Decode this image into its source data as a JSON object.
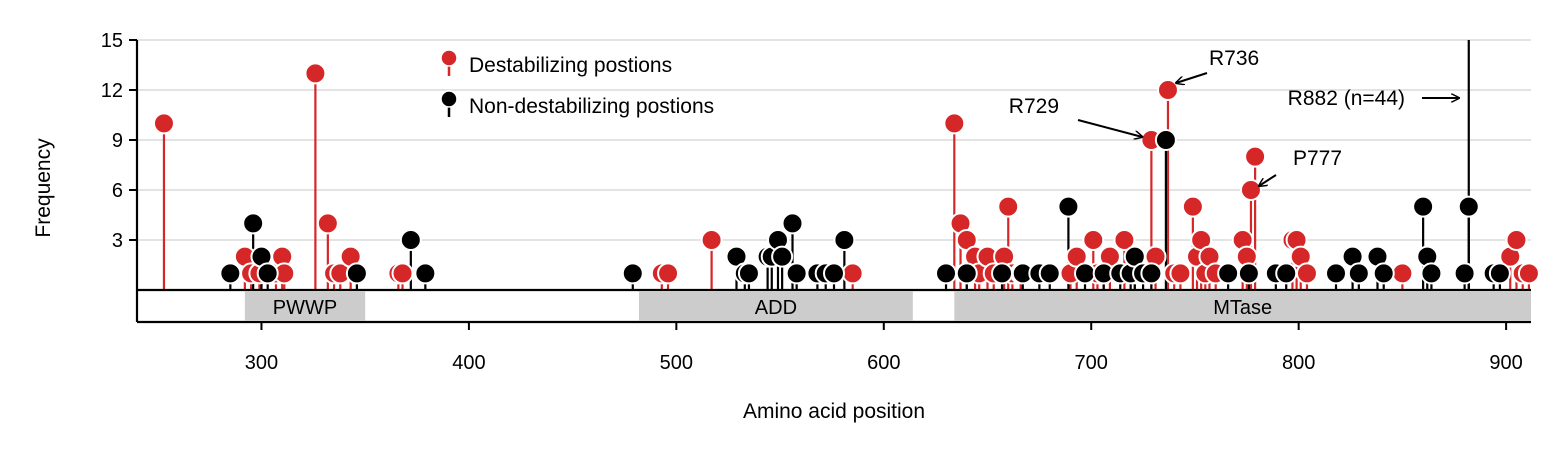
{
  "chart_data": {
    "type": "lollipop",
    "xlabel": "Amino acid position",
    "ylabel": "Frequency",
    "xlim": [
      240,
      912
    ],
    "ylim": [
      0,
      15
    ],
    "x_ticks": [
      300,
      400,
      500,
      600,
      700,
      800,
      900
    ],
    "y_ticks": [
      3,
      6,
      9,
      12,
      15
    ],
    "grid": "horizontal",
    "legend_position": "top-center",
    "colors": {
      "destabilizing": "#d62728",
      "non_destabilizing": "#000000",
      "domain": "#cccccc"
    },
    "series": [
      {
        "name": "Destabilizing postions",
        "key": "destabilizing",
        "points": [
          [
            253,
            10
          ],
          [
            292,
            2
          ],
          [
            295,
            1
          ],
          [
            299,
            1
          ],
          [
            307,
            1
          ],
          [
            310,
            2
          ],
          [
            311,
            1
          ],
          [
            326,
            13
          ],
          [
            332,
            4
          ],
          [
            335,
            1
          ],
          [
            338,
            1
          ],
          [
            343,
            2
          ],
          [
            366,
            1
          ],
          [
            368,
            1
          ],
          [
            493,
            1
          ],
          [
            496,
            1
          ],
          [
            517,
            3
          ],
          [
            585,
            1
          ],
          [
            634,
            10
          ],
          [
            637,
            4
          ],
          [
            640,
            3
          ],
          [
            644,
            2
          ],
          [
            646,
            1
          ],
          [
            650,
            2
          ],
          [
            653,
            1
          ],
          [
            658,
            2
          ],
          [
            660,
            5
          ],
          [
            662,
            1
          ],
          [
            666,
            1
          ],
          [
            690,
            1
          ],
          [
            693,
            2
          ],
          [
            701,
            3
          ],
          [
            703,
            1
          ],
          [
            706,
            1
          ],
          [
            709,
            2
          ],
          [
            716,
            3
          ],
          [
            721,
            1
          ],
          [
            729,
            9
          ],
          [
            731,
            2
          ],
          [
            737,
            12
          ],
          [
            740,
            1
          ],
          [
            743,
            1
          ],
          [
            749,
            5
          ],
          [
            751,
            2
          ],
          [
            753,
            3
          ],
          [
            755,
            1
          ],
          [
            757,
            2
          ],
          [
            760,
            1
          ],
          [
            773,
            3
          ],
          [
            775,
            2
          ],
          [
            777,
            6
          ],
          [
            779,
            8
          ],
          [
            797,
            3
          ],
          [
            799,
            3
          ],
          [
            801,
            2
          ],
          [
            804,
            1
          ],
          [
            850,
            1
          ],
          [
            902,
            2
          ],
          [
            905,
            3
          ],
          [
            908,
            1
          ],
          [
            911,
            1
          ]
        ]
      },
      {
        "name": "Non-destabilizing postions",
        "key": "non_destabilizing",
        "points": [
          [
            285,
            1
          ],
          [
            296,
            4
          ],
          [
            300,
            2
          ],
          [
            303,
            1
          ],
          [
            346,
            1
          ],
          [
            372,
            3
          ],
          [
            379,
            1
          ],
          [
            479,
            1
          ],
          [
            529,
            2
          ],
          [
            533,
            1
          ],
          [
            535,
            1
          ],
          [
            544,
            2
          ],
          [
            546,
            2
          ],
          [
            549,
            3
          ],
          [
            551,
            2
          ],
          [
            556,
            4
          ],
          [
            558,
            1
          ],
          [
            568,
            1
          ],
          [
            572,
            1
          ],
          [
            576,
            1
          ],
          [
            581,
            3
          ],
          [
            630,
            1
          ],
          [
            640,
            1
          ],
          [
            657,
            1
          ],
          [
            667,
            1
          ],
          [
            675,
            1
          ],
          [
            680,
            1
          ],
          [
            689,
            5
          ],
          [
            697,
            1
          ],
          [
            706,
            1
          ],
          [
            714,
            1
          ],
          [
            719,
            1
          ],
          [
            721,
            2
          ],
          [
            725,
            1
          ],
          [
            729,
            1
          ],
          [
            736,
            9
          ],
          [
            766,
            1
          ],
          [
            776,
            1
          ],
          [
            789,
            1
          ],
          [
            794,
            1
          ],
          [
            818,
            1
          ],
          [
            826,
            2
          ],
          [
            829,
            1
          ],
          [
            838,
            2
          ],
          [
            841,
            1
          ],
          [
            860,
            5
          ],
          [
            862,
            2
          ],
          [
            864,
            1
          ],
          [
            880,
            1
          ],
          [
            882,
            5
          ],
          [
            894,
            1
          ],
          [
            897,
            1
          ]
        ]
      }
    ],
    "r882": {
      "x": 882,
      "label": "R882 (n=44)"
    },
    "annotations": [
      {
        "label": "R736",
        "target": [
          737,
          12
        ]
      },
      {
        "label": "R729",
        "target": [
          729,
          9
        ]
      },
      {
        "label": "P777",
        "target": [
          777,
          6
        ]
      }
    ],
    "domains": [
      {
        "label": "PWWP",
        "start": 292,
        "end": 350
      },
      {
        "label": "ADD",
        "start": 482,
        "end": 614
      },
      {
        "label": "MTase",
        "start": 634,
        "end": 912
      }
    ]
  }
}
